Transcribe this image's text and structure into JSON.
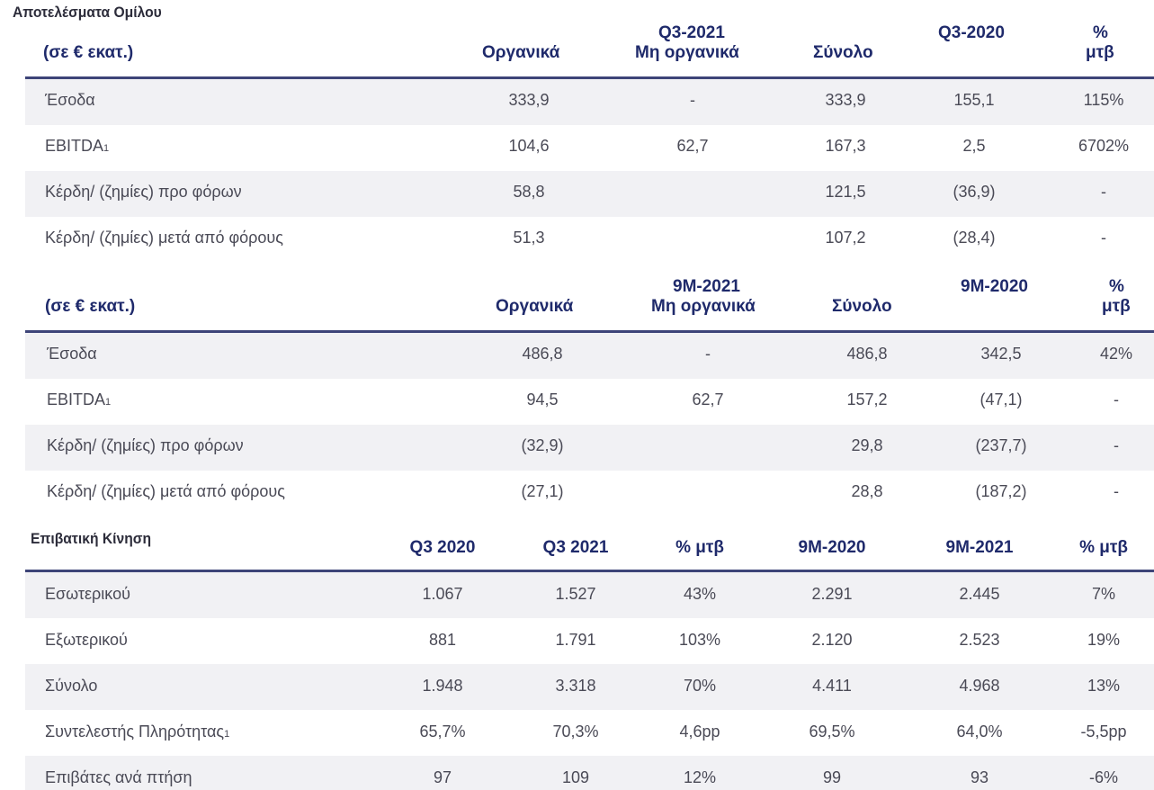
{
  "group_results": {
    "title": "Αποτελέσματα Ομίλου",
    "q3": {
      "unit_label": "(σε € εκατ.)",
      "columns": {
        "organic": "Οργανικά",
        "period": "Q3-2021",
        "non_organic": "Μη οργανικά",
        "total": "Σύνολο",
        "prior": "Q3-2020",
        "pct_top": "%",
        "pct_bottom": "μτβ"
      },
      "rows": [
        {
          "label": "Έσοδα",
          "fn": "",
          "organic": "333,9",
          "non_organic": "-",
          "total": "333,9",
          "prior": "155,1",
          "pct": "115%"
        },
        {
          "label": "EBITDA",
          "fn": "1",
          "organic": "104,6",
          "non_organic": "62,7",
          "total": "167,3",
          "prior": "2,5",
          "pct": "6702%"
        },
        {
          "label": "Κέρδη/ (ζημίες) προ φόρων",
          "fn": "",
          "organic": "58,8",
          "non_organic": "",
          "total": "121,5",
          "prior": "(36,9)",
          "pct": "-"
        },
        {
          "label": "Κέρδη/ (ζημίες) μετά από φόρους",
          "fn": "",
          "organic": "51,3",
          "non_organic": "",
          "total": "107,2",
          "prior": "(28,4)",
          "pct": "-"
        }
      ]
    },
    "nine_months": {
      "unit_label": "(σε € εκατ.)",
      "columns": {
        "organic": "Οργανικά",
        "period": "9M-2021",
        "non_organic": "Μη οργανικά",
        "total": "Σύνολο",
        "prior": "9M-2020",
        "pct_top": "%",
        "pct_bottom": "μτβ"
      },
      "rows": [
        {
          "label": "Έσοδα",
          "fn": "",
          "organic": "486,8",
          "non_organic": "-",
          "total": "486,8",
          "prior": "342,5",
          "pct": "42%"
        },
        {
          "label": "EBITDA",
          "fn": "1",
          "organic": "94,5",
          "non_organic": "62,7",
          "total": "157,2",
          "prior": "(47,1)",
          "pct": "-"
        },
        {
          "label": "Κέρδη/ (ζημίες) προ φόρων",
          "fn": "",
          "organic": "(32,9)",
          "non_organic": "",
          "total": "29,8",
          "prior": "(237,7)",
          "pct": "-"
        },
        {
          "label": "Κέρδη/ (ζημίες) μετά από φόρους",
          "fn": "",
          "organic": "(27,1)",
          "non_organic": "",
          "total": "28,8",
          "prior": "(187,2)",
          "pct": "-"
        }
      ]
    }
  },
  "passenger_traffic": {
    "title": "Επιβατική Κίνηση",
    "columns": [
      "Q3 2020",
      "Q3 2021",
      "% μτβ",
      "9M-2020",
      "9M-2021",
      "% μτβ"
    ],
    "rows": [
      {
        "label": "Εσωτερικού",
        "fn": "",
        "values": [
          "1.067",
          "1.527",
          "43%",
          "2.291",
          "2.445",
          "7%"
        ]
      },
      {
        "label": "Εξωτερικού",
        "fn": "",
        "values": [
          "881",
          "1.791",
          "103%",
          "2.120",
          "2.523",
          "19%"
        ]
      },
      {
        "label": "Σύνολο",
        "fn": "",
        "values": [
          "1.948",
          "3.318",
          "70%",
          "4.411",
          "4.968",
          "13%"
        ]
      },
      {
        "label": "Συντελεστής Πληρότητας",
        "fn": "1",
        "values": [
          "65,7%",
          "70,3%",
          "4,6pp",
          "69,5%",
          "64,0%",
          "-5,5pp"
        ]
      },
      {
        "label": "Επιβάτες ανά πτήση",
        "fn": "",
        "values": [
          "97",
          "109",
          "12%",
          "99",
          "93",
          "-6%"
        ]
      }
    ]
  }
}
